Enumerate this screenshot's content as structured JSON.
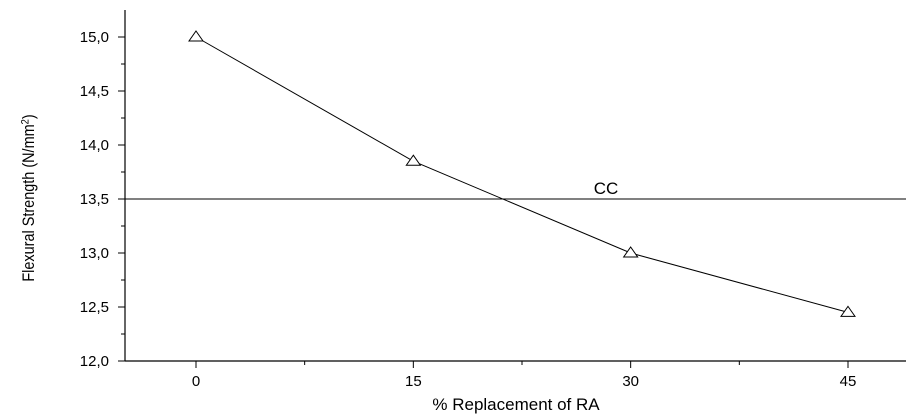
{
  "chart_data": {
    "type": "line",
    "x": [
      0,
      15,
      30,
      45
    ],
    "series": [
      {
        "values": [
          15.0,
          13.85,
          13.0,
          12.45
        ],
        "marker": "open-triangle",
        "color": "#000000"
      }
    ],
    "reference_lines": [
      {
        "label": "CC",
        "y": 13.5
      }
    ],
    "xlabel": "% Replacement of RA",
    "ylabel": "Flexural Strength (N/mm",
    "ylabel_superscript": "2",
    "ylabel_suffix": ")",
    "xlim": [
      -15,
      52
    ],
    "ylim": [
      12.0,
      15.3
    ],
    "x_ticks": [
      0,
      15,
      30,
      45
    ],
    "x_tick_labels": [
      "0",
      "15",
      "30",
      "45"
    ],
    "y_ticks": [
      12.0,
      12.5,
      13.0,
      13.5,
      14.0,
      14.5,
      15.0
    ],
    "y_tick_labels": [
      "12,0",
      "12,5",
      "13,0",
      "13,5",
      "14,0",
      "14,5",
      "15,0"
    ],
    "grid": false,
    "legend": "none"
  }
}
